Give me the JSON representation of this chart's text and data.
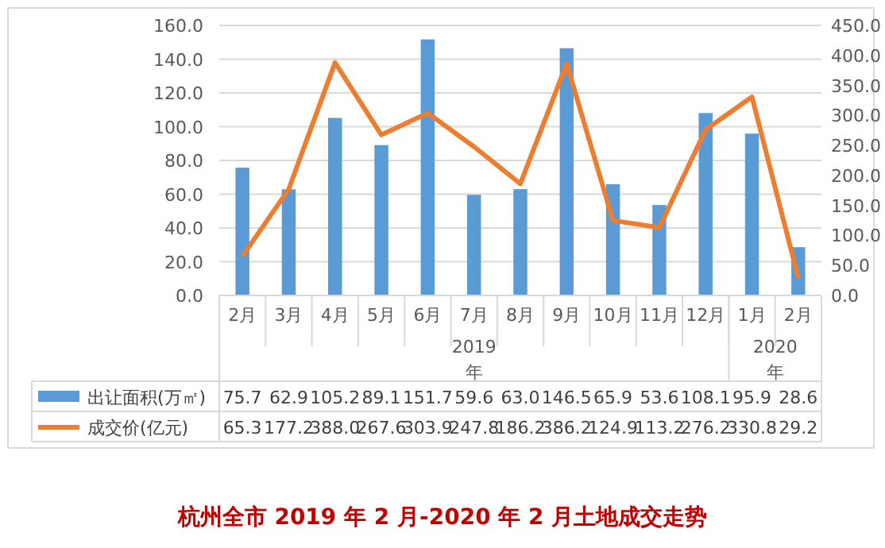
{
  "chart_data": {
    "type": "bar",
    "title": "杭州全市 2019 年 2 月-2020 年 2 月土地成交走势",
    "categories": [
      "2月",
      "3月",
      "4月",
      "5月",
      "6月",
      "7月",
      "8月",
      "9月",
      "10月",
      "11月",
      "12月",
      "1月",
      "2月"
    ],
    "series": [
      {
        "name": "出让面积(万㎡)",
        "color": "#5b9bd5",
        "values": [
          75.7,
          62.9,
          105.2,
          89.1,
          151.7,
          59.6,
          63.0,
          146.5,
          65.9,
          53.6,
          108.1,
          95.9,
          28.6
        ],
        "value_labels": [
          "75.7",
          "62.9",
          "105.2",
          "89.1",
          "151.7",
          "59.6",
          "63.0",
          "146.5",
          "65.9",
          "53.6",
          "108.1",
          "95.9",
          "28.6"
        ]
      },
      {
        "name": "成交价(亿元)",
        "type": "line",
        "axis": "y2",
        "color": "#ed7d31",
        "values": [
          65.3,
          177.2,
          388.0,
          267.6,
          303.9,
          247.8,
          186.2,
          386.2,
          124.9,
          113.2,
          276.2,
          330.8,
          29.2
        ],
        "value_labels": [
          "65.3",
          "177.2",
          "388.0",
          "267.6",
          "303.9",
          "247.8",
          "186.2",
          "386.2",
          "124.9",
          "113.2",
          "276.2",
          "330.8",
          "29.2"
        ]
      }
    ],
    "ylim": [
      0,
      160
    ],
    "yticks": [
      {
        "value": 0,
        "label": "0.0"
      },
      {
        "value": 20,
        "label": "20.0"
      },
      {
        "value": 40,
        "label": "40.0"
      },
      {
        "value": 60,
        "label": "60.0"
      },
      {
        "value": 80,
        "label": "80.0"
      },
      {
        "value": 100,
        "label": "100.0"
      },
      {
        "value": 120,
        "label": "120.0"
      },
      {
        "value": 140,
        "label": "140.0"
      },
      {
        "value": 160,
        "label": "160.0"
      }
    ],
    "y2lim": [
      0,
      450
    ],
    "y2ticks": [
      {
        "value": 0,
        "label": "0.0"
      },
      {
        "value": 50,
        "label": "50.0"
      },
      {
        "value": 100,
        "label": "100.0"
      },
      {
        "value": 150,
        "label": "150.0"
      },
      {
        "value": 200,
        "label": "200.0"
      },
      {
        "value": 250,
        "label": "250.0"
      },
      {
        "value": 300,
        "label": "300.0"
      },
      {
        "value": 350,
        "label": "350.0"
      },
      {
        "value": 400,
        "label": "400.0"
      },
      {
        "value": 450,
        "label": "450.0"
      }
    ],
    "annotations": [
      "2019年",
      "2020年"
    ],
    "grid": "y",
    "legend": "bottom"
  }
}
